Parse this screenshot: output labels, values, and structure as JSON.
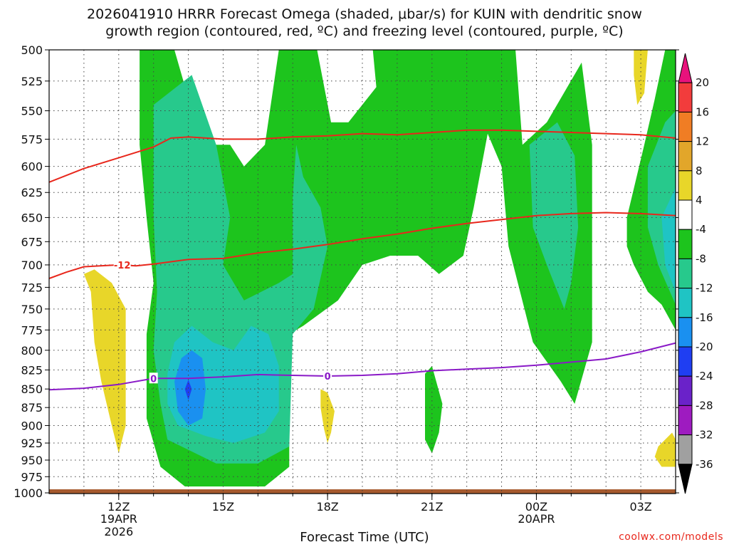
{
  "title": {
    "line1": "2026041910 HRRR Forecast Omega (shaded, μbar/s) for KUIN with dendritic snow",
    "line2": "growth region (contoured, red, ºC) and freezing level (contoured, purple, ºC)"
  },
  "xlabel": "Forecast Time (UTC)",
  "credit": "coolwx.com/models",
  "chart_data": {
    "type": "heatmap",
    "title": "2026041910 HRRR Forecast Omega (shaded, μbar/s) for KUIN with dendritic snow growth region (contoured, red, ºC) and freezing level (contoured, purple, ºC)",
    "xlabel": "Forecast Time (UTC)",
    "ylabel": "",
    "y_axis": {
      "ticks": [
        500,
        525,
        550,
        575,
        600,
        625,
        650,
        675,
        700,
        725,
        750,
        775,
        800,
        825,
        850,
        875,
        900,
        925,
        950,
        975,
        1000
      ],
      "range": [
        1000,
        500
      ],
      "scale": "log-pressure"
    },
    "x_axis": {
      "range_hours": [
        10,
        28
      ],
      "ticks": [
        {
          "hour": 12,
          "label": "12Z",
          "sub1": "19APR",
          "sub2": "2026"
        },
        {
          "hour": 15,
          "label": "15Z",
          "sub1": "",
          "sub2": ""
        },
        {
          "hour": 18,
          "label": "18Z",
          "sub1": "",
          "sub2": ""
        },
        {
          "hour": 21,
          "label": "21Z",
          "sub1": "",
          "sub2": ""
        },
        {
          "hour": 24,
          "label": "00Z",
          "sub1": "20APR",
          "sub2": ""
        },
        {
          "hour": 27,
          "label": "03Z",
          "sub1": "",
          "sub2": ""
        }
      ]
    },
    "grid": true,
    "colorbar": {
      "labels": [
        "20",
        "16",
        "12",
        "8",
        "4",
        "-4",
        "-8",
        "-12",
        "-16",
        "-20",
        "-24",
        "-28",
        "-32",
        "-36"
      ],
      "colors": [
        "#e8127c",
        "#f23c3c",
        "#f07d24",
        "#e2a62a",
        "#e8d629",
        "#ffffff",
        "#1dc41d",
        "#27c98c",
        "#1fc4c4",
        "#1a90f0",
        "#1f3ef2",
        "#6a22c9",
        "#9e1bc0",
        "#a0a0a0",
        "#000000"
      ]
    },
    "omega_regions": [
      {
        "value_class": "4",
        "color": "#e8d629",
        "points": [
          [
            11.0,
            710
          ],
          [
            11.2,
            730
          ],
          [
            11.3,
            790
          ],
          [
            11.5,
            840
          ],
          [
            11.8,
            900
          ],
          [
            12.0,
            940
          ],
          [
            12.2,
            900
          ],
          [
            12.2,
            750
          ],
          [
            11.8,
            720
          ],
          [
            11.3,
            705
          ]
        ]
      },
      {
        "value_class": "4",
        "color": "#e8d629",
        "points": [
          [
            17.8,
            850
          ],
          [
            18.0,
            855
          ],
          [
            18.2,
            880
          ],
          [
            18.1,
            910
          ],
          [
            18.0,
            925
          ],
          [
            17.9,
            905
          ],
          [
            17.8,
            875
          ]
        ]
      },
      {
        "value_class": "4",
        "color": "#e8d629",
        "points": [
          [
            26.8,
            500
          ],
          [
            27.2,
            500
          ],
          [
            27.1,
            535
          ],
          [
            26.9,
            545
          ],
          [
            26.8,
            520
          ]
        ]
      },
      {
        "value_class": "4",
        "color": "#e8d629",
        "points": [
          [
            27.5,
            930
          ],
          [
            27.9,
            910
          ],
          [
            28.0,
            920
          ],
          [
            28.0,
            960
          ],
          [
            27.6,
            960
          ],
          [
            27.4,
            945
          ]
        ]
      },
      {
        "value_class": "-4",
        "color": "#1dc41d",
        "points": [
          [
            12.6,
            500
          ],
          [
            13.6,
            500
          ],
          [
            14.2,
            560
          ],
          [
            14.8,
            580
          ],
          [
            15.2,
            580
          ],
          [
            15.6,
            600
          ],
          [
            16.2,
            580
          ],
          [
            16.6,
            500
          ],
          [
            17.7,
            500
          ],
          [
            18.1,
            560
          ],
          [
            18.6,
            560
          ],
          [
            19.4,
            530
          ],
          [
            19.3,
            500
          ],
          [
            23.4,
            500
          ],
          [
            23.6,
            580
          ],
          [
            24.3,
            560
          ],
          [
            25.3,
            510
          ],
          [
            25.6,
            580
          ],
          [
            25.6,
            690
          ],
          [
            25.6,
            790
          ],
          [
            25.1,
            870
          ],
          [
            24.7,
            840
          ],
          [
            23.9,
            790
          ],
          [
            23.2,
            680
          ],
          [
            23.0,
            600
          ],
          [
            22.6,
            570
          ],
          [
            22.2,
            640
          ],
          [
            21.9,
            690
          ],
          [
            21.2,
            710
          ],
          [
            20.6,
            690
          ],
          [
            19.8,
            690
          ],
          [
            19.0,
            700
          ],
          [
            18.3,
            740
          ],
          [
            17.3,
            770
          ],
          [
            16.9,
            780
          ],
          [
            16.9,
            960
          ],
          [
            16.2,
            990
          ],
          [
            15.0,
            990
          ],
          [
            13.9,
            990
          ],
          [
            13.2,
            960
          ],
          [
            12.8,
            890
          ],
          [
            12.8,
            780
          ],
          [
            13.0,
            720
          ],
          [
            12.8,
            650
          ],
          [
            12.6,
            580
          ]
        ]
      },
      {
        "value_class": "-4",
        "color": "#1dc41d",
        "points": [
          [
            20.8,
            830
          ],
          [
            21.0,
            820
          ],
          [
            21.3,
            870
          ],
          [
            21.2,
            910
          ],
          [
            21.0,
            940
          ],
          [
            20.8,
            920
          ],
          [
            20.8,
            870
          ]
        ]
      },
      {
        "value_class": "-4",
        "color": "#1dc41d",
        "points": [
          [
            26.6,
            650
          ],
          [
            27.1,
            580
          ],
          [
            27.4,
            540
          ],
          [
            27.7,
            500
          ],
          [
            28.0,
            500
          ],
          [
            28.0,
            775
          ],
          [
            27.6,
            745
          ],
          [
            27.2,
            730
          ],
          [
            26.8,
            700
          ],
          [
            26.6,
            680
          ]
        ]
      },
      {
        "value_class": "-8",
        "color": "#27c98c",
        "points": [
          [
            13.0,
            545
          ],
          [
            14.1,
            520
          ],
          [
            14.8,
            580
          ],
          [
            15.2,
            650
          ],
          [
            15.0,
            700
          ],
          [
            15.6,
            740
          ],
          [
            16.6,
            720
          ],
          [
            17.0,
            710
          ],
          [
            17.0,
            630
          ],
          [
            17.1,
            580
          ],
          [
            17.3,
            610
          ],
          [
            17.8,
            640
          ],
          [
            18.0,
            680
          ],
          [
            17.6,
            750
          ],
          [
            17.0,
            780
          ],
          [
            16.9,
            930
          ],
          [
            16.0,
            955
          ],
          [
            14.8,
            955
          ],
          [
            13.4,
            920
          ],
          [
            13.2,
            870
          ],
          [
            13.0,
            800
          ],
          [
            13.1,
            730
          ],
          [
            13.0,
            650
          ]
        ]
      },
      {
        "value_class": "-8",
        "color": "#27c98c",
        "points": [
          [
            23.8,
            580
          ],
          [
            24.6,
            560
          ],
          [
            25.1,
            590
          ],
          [
            25.2,
            660
          ],
          [
            25.0,
            720
          ],
          [
            24.8,
            750
          ],
          [
            24.3,
            700
          ],
          [
            23.9,
            660
          ]
        ]
      },
      {
        "value_class": "-8",
        "color": "#27c98c",
        "points": [
          [
            27.2,
            600
          ],
          [
            27.7,
            560
          ],
          [
            28.0,
            550
          ],
          [
            28.0,
            745
          ],
          [
            27.5,
            700
          ],
          [
            27.2,
            660
          ]
        ]
      },
      {
        "value_class": "-12",
        "color": "#1fc4c4",
        "points": [
          [
            13.4,
            830
          ],
          [
            13.6,
            790
          ],
          [
            14.1,
            770
          ],
          [
            14.7,
            790
          ],
          [
            15.3,
            800
          ],
          [
            15.8,
            770
          ],
          [
            16.3,
            780
          ],
          [
            16.6,
            820
          ],
          [
            16.6,
            880
          ],
          [
            16.2,
            910
          ],
          [
            15.3,
            925
          ],
          [
            14.5,
            915
          ],
          [
            13.7,
            900
          ],
          [
            13.4,
            870
          ]
        ]
      },
      {
        "value_class": "-12",
        "color": "#1fc4c4",
        "points": [
          [
            27.6,
            650
          ],
          [
            28.0,
            620
          ],
          [
            28.0,
            730
          ],
          [
            27.7,
            700
          ]
        ]
      },
      {
        "value_class": "-16",
        "color": "#1a90f0",
        "points": [
          [
            13.6,
            840
          ],
          [
            13.8,
            810
          ],
          [
            14.1,
            800
          ],
          [
            14.4,
            810
          ],
          [
            14.5,
            850
          ],
          [
            14.4,
            890
          ],
          [
            14.0,
            900
          ],
          [
            13.7,
            880
          ]
        ]
      },
      {
        "value_class": "-20",
        "color": "#1f3ef2",
        "points": [
          [
            13.9,
            850
          ],
          [
            14.0,
            838
          ],
          [
            14.1,
            850
          ],
          [
            14.0,
            865
          ]
        ]
      }
    ],
    "dgz_contour": {
      "color": "#e8271c",
      "label": "-12",
      "upper": [
        [
          10,
          615
        ],
        [
          11,
          602
        ],
        [
          12,
          592
        ],
        [
          13,
          582
        ],
        [
          13.5,
          574
        ],
        [
          14,
          573
        ],
        [
          15,
          575
        ],
        [
          16,
          575
        ],
        [
          17,
          573
        ],
        [
          18,
          572
        ],
        [
          19,
          570
        ],
        [
          20,
          571
        ],
        [
          21,
          569
        ],
        [
          22,
          567
        ],
        [
          23,
          567
        ],
        [
          24,
          568
        ],
        [
          25,
          569
        ],
        [
          26,
          570
        ],
        [
          27,
          571
        ],
        [
          28,
          574
        ]
      ],
      "lower": [
        [
          10,
          715
        ],
        [
          10.5,
          708
        ],
        [
          11,
          702
        ],
        [
          12,
          700
        ],
        [
          12.5,
          701
        ],
        [
          13,
          699
        ],
        [
          14,
          694
        ],
        [
          15,
          693
        ],
        [
          16,
          687
        ],
        [
          17,
          683
        ],
        [
          18,
          678
        ],
        [
          19,
          672
        ],
        [
          20,
          667
        ],
        [
          21,
          661
        ],
        [
          22,
          656
        ],
        [
          23,
          652
        ],
        [
          24,
          648
        ],
        [
          25,
          646
        ],
        [
          26,
          645
        ],
        [
          27,
          646
        ],
        [
          28,
          648
        ]
      ]
    },
    "freezing_level": {
      "color": "#8a1ac7",
      "label": "0",
      "points": [
        [
          10,
          851
        ],
        [
          11,
          849
        ],
        [
          12,
          844
        ],
        [
          13,
          836
        ],
        [
          14,
          836
        ],
        [
          15,
          834
        ],
        [
          16,
          831
        ],
        [
          17,
          832
        ],
        [
          18,
          833
        ],
        [
          19,
          832
        ],
        [
          20,
          830
        ],
        [
          21,
          826
        ],
        [
          22,
          824
        ],
        [
          23,
          822
        ],
        [
          24,
          819
        ],
        [
          25,
          815
        ],
        [
          26,
          811
        ],
        [
          27,
          802
        ],
        [
          28,
          791
        ]
      ]
    },
    "ground": {
      "color": "#a65a2e",
      "pressure": 1000
    }
  }
}
